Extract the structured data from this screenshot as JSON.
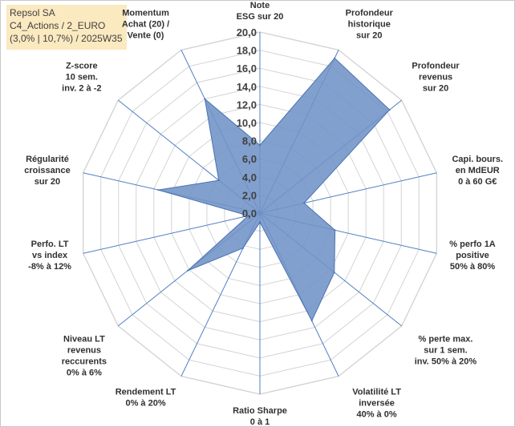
{
  "info": {
    "line1": "Repsol SA",
    "line2": "C4_Actions / 2_EURO",
    "line3": "(3,0% | 10,7%) / 2025W35"
  },
  "chart_data": {
    "type": "radar",
    "rmin": 0,
    "rmax": 20,
    "ticks": [
      "0,0",
      "2,0",
      "4,0",
      "6,0",
      "8,0",
      "10,0",
      "12,0",
      "14,0",
      "16,0",
      "18,0",
      "20,0"
    ],
    "axes": [
      [
        "Note",
        "ESG sur 20"
      ],
      [
        "Profondeur",
        "historique",
        "sur 20"
      ],
      [
        "Profondeur",
        "revenus",
        "sur 20"
      ],
      [
        "Capi. bours.",
        "en MdEUR",
        "0 à 60 G€"
      ],
      [
        "% perfo 1A",
        "positive",
        "50% à 80%"
      ],
      [
        "% perte max.",
        "sur 1 sem.",
        "inv. 50% à 20%"
      ],
      [
        "Volatilité LT",
        "inversée",
        "40% à 0%"
      ],
      [
        "Ratio Sharpe",
        "0 à 1"
      ],
      [
        "Rendement LT",
        "0% à 20%"
      ],
      [
        "Niveau LT",
        "revenus",
        "reccurents",
        "0% à 6%"
      ],
      [
        "Perfo. LT",
        "vs index",
        "-8% à 12%"
      ],
      [
        "Régularité",
        "croissance",
        "sur 20"
      ],
      [
        "Z-score",
        "10 sem.",
        "inv. 2 à -2"
      ],
      [
        "Momentum",
        "Achat (20) /",
        "Vente (0)"
      ]
    ],
    "values": [
      7.5,
      19.0,
      18.3,
      5.0,
      8.5,
      10.5,
      13.2,
      1.0,
      4.3,
      10.2,
      1.3,
      11.5,
      5.8,
      14.0
    ],
    "series_color": "#7193c7",
    "series_line": "#4a72b0"
  }
}
